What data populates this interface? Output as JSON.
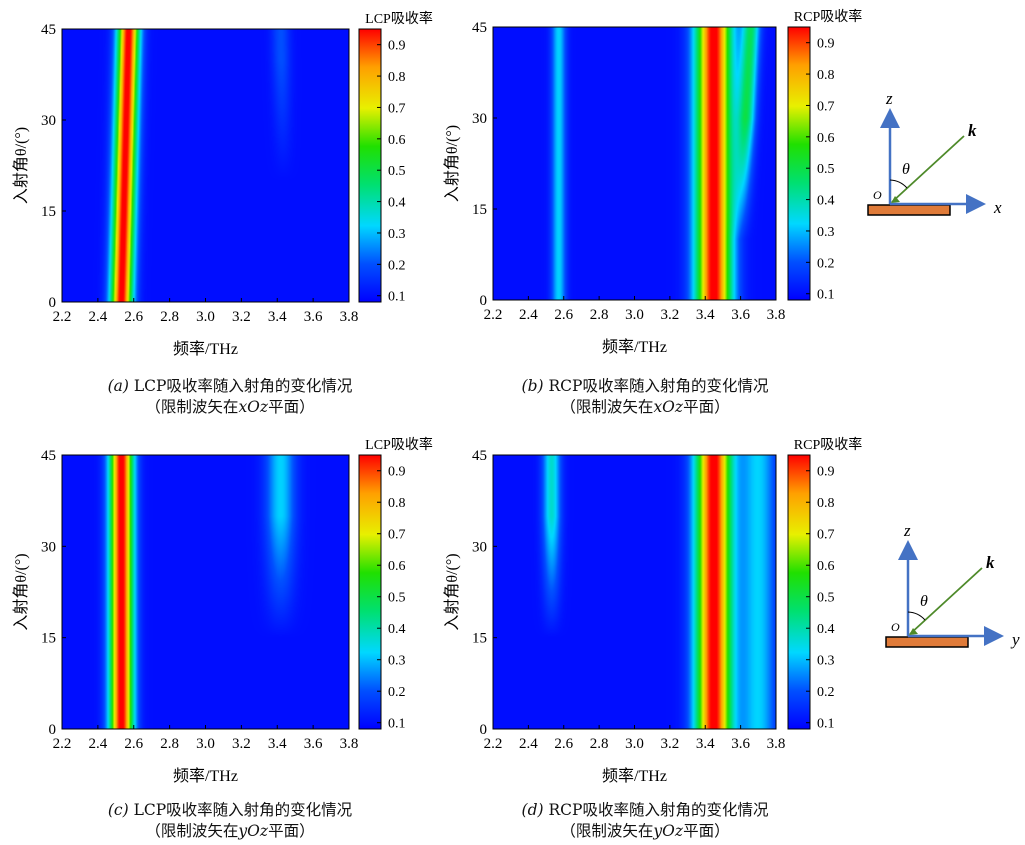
{
  "chart_data": [
    {
      "type": "heatmap",
      "panel_label": "(a)",
      "xlabel": "频率/THz",
      "ylabel": "入射角θ/(°)",
      "x_ticks": [
        "2.2",
        "2.4",
        "2.6",
        "2.8",
        "3.0",
        "3.2",
        "3.4",
        "3.6",
        "3.8"
      ],
      "y_ticks": [
        "0",
        "15",
        "30",
        "45"
      ],
      "xlim": [
        2.2,
        3.8
      ],
      "ylim": [
        0,
        45
      ],
      "colorbar_label": "LCP吸收率",
      "colorbar_ticks": [
        "0.1",
        "0.2",
        "0.3",
        "0.4",
        "0.5",
        "0.6",
        "0.7",
        "0.8",
        "0.9"
      ],
      "colorbar_range": [
        0.08,
        0.95
      ],
      "caption_line1": "LCP吸收率随入射角的变化情况",
      "caption_line2_pre": "（限制波矢在",
      "caption_line2_plane": "xOz",
      "caption_line2_post": "平面）",
      "features": [
        {
          "center_freq_THz": 2.53,
          "shift_at_45deg_THz": 0.04,
          "peak": 0.95,
          "width_THz": 0.06
        },
        {
          "center_freq_THz": 3.45,
          "shift_at_45deg_THz": -0.03,
          "peak": 0.18,
          "width_THz": 0.05,
          "appears_above_deg": 30
        }
      ]
    },
    {
      "type": "heatmap",
      "panel_label": "(b)",
      "xlabel": "频率/THz",
      "ylabel": "入射角θ/(°)",
      "x_ticks": [
        "2.2",
        "2.4",
        "2.6",
        "2.8",
        "3.0",
        "3.2",
        "3.4",
        "3.6",
        "3.8"
      ],
      "y_ticks": [
        "0",
        "15",
        "30",
        "45"
      ],
      "xlim": [
        2.2,
        3.8
      ],
      "ylim": [
        0,
        45
      ],
      "colorbar_label": "RCP吸收率",
      "colorbar_ticks": [
        "0.1",
        "0.2",
        "0.3",
        "0.4",
        "0.5",
        "0.6",
        "0.7",
        "0.8",
        "0.9"
      ],
      "colorbar_range": [
        0.08,
        0.95
      ],
      "caption_line1": "RCP吸收率随入射角的变化情况",
      "caption_line2_pre": "（限制波矢在",
      "caption_line2_plane": "xOz",
      "caption_line2_post": "平面）",
      "features": [
        {
          "center_freq_THz": 3.45,
          "shift_at_45deg_THz": 0.0,
          "peak": 0.95,
          "width_THz": 0.1
        },
        {
          "center_freq_THz": 2.57,
          "shift_at_45deg_THz": 0.0,
          "peak": 0.3,
          "width_THz": 0.04
        },
        {
          "center_freq_THz": 3.58,
          "shift_at_45deg_THz": 0.08,
          "peak": 0.45,
          "width_THz": 0.05,
          "appears_above_deg": 20
        }
      ]
    },
    {
      "type": "heatmap",
      "panel_label": "(c)",
      "xlabel": "频率/THz",
      "ylabel": "入射角θ/(°)",
      "x_ticks": [
        "2.2",
        "2.4",
        "2.6",
        "2.8",
        "3.0",
        "3.2",
        "3.4",
        "3.6",
        "3.8"
      ],
      "y_ticks": [
        "0",
        "15",
        "30",
        "45"
      ],
      "xlim": [
        2.2,
        3.8
      ],
      "ylim": [
        0,
        45
      ],
      "colorbar_label": "LCP吸收率",
      "colorbar_ticks": [
        "0.1",
        "0.2",
        "0.3",
        "0.4",
        "0.5",
        "0.6",
        "0.7",
        "0.8",
        "0.9"
      ],
      "colorbar_range": [
        0.08,
        0.95
      ],
      "caption_line1": "LCP吸收率随入射角的变化情况",
      "caption_line2_pre": "（限制波矢在",
      "caption_line2_plane": "yOz",
      "caption_line2_post": "平面）",
      "features": [
        {
          "center_freq_THz": 2.53,
          "shift_at_45deg_THz": 0.0,
          "peak": 0.95,
          "width_THz": 0.065
        },
        {
          "center_freq_THz": 3.42,
          "shift_at_45deg_THz": 0.0,
          "peak": 0.3,
          "width_THz": 0.08,
          "appears_above_deg": 25
        }
      ]
    },
    {
      "type": "heatmap",
      "panel_label": "(d)",
      "xlabel": "频率/THz",
      "ylabel": "入射角θ/(°)",
      "x_ticks": [
        "2.2",
        "2.4",
        "2.6",
        "2.8",
        "3.0",
        "3.2",
        "3.4",
        "3.6",
        "3.8"
      ],
      "y_ticks": [
        "0",
        "15",
        "30",
        "45"
      ],
      "xlim": [
        2.2,
        3.8
      ],
      "ylim": [
        0,
        45
      ],
      "colorbar_label": "RCP吸收率",
      "colorbar_ticks": [
        "0.1",
        "0.2",
        "0.3",
        "0.4",
        "0.5",
        "0.6",
        "0.7",
        "0.8",
        "0.9"
      ],
      "colorbar_range": [
        0.08,
        0.95
      ],
      "caption_line1": "RCP吸收率随入射角的变化情况",
      "caption_line2_pre": "（限制波矢在",
      "caption_line2_plane": "yOz",
      "caption_line2_post": "平面）",
      "features": [
        {
          "center_freq_THz": 3.45,
          "shift_at_45deg_THz": 0.0,
          "peak": 0.95,
          "width_THz": 0.1
        },
        {
          "center_freq_THz": 2.53,
          "shift_at_45deg_THz": 0.0,
          "peak": 0.35,
          "width_THz": 0.05,
          "appears_above_deg": 25
        },
        {
          "center_freq_THz": 3.7,
          "shift_at_45deg_THz": 0.0,
          "peak": 0.3,
          "width_THz": 0.1
        }
      ]
    }
  ],
  "diagrams": [
    {
      "axis_vertical": "z",
      "axis_horizontal": "x",
      "origin": "O",
      "angle": "θ",
      "vector": "k"
    },
    {
      "axis_vertical": "z",
      "axis_horizontal": "y",
      "origin": "O",
      "angle": "θ",
      "vector": "k"
    }
  ],
  "colors": {
    "axis_arrow": "#4472c4",
    "k_vector": "#4e8a2a",
    "substrate": "#e07b39"
  }
}
